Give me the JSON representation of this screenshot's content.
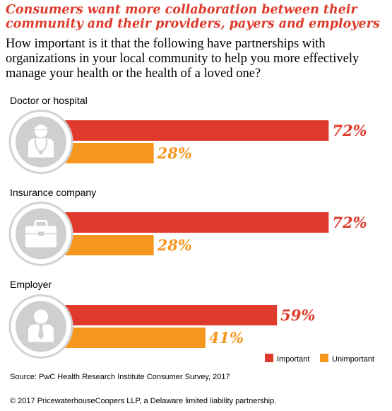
{
  "title": "Consumers want more collaboration between their community and their providers, payers and employers",
  "question": "How important is it that the following have partnerships with organizations in your local community to help you more effectively manage your health or the health of a loved one?",
  "chart_data": {
    "type": "bar",
    "orientation": "horizontal",
    "categories": [
      "Doctor or hospital",
      "Insurance company",
      "Employer"
    ],
    "icons": [
      "doctor-icon",
      "briefcase-icon",
      "person-tie-icon"
    ],
    "series": [
      {
        "name": "Important",
        "values": [
          72,
          72,
          59
        ],
        "labels": [
          "72%",
          "72%",
          "59%"
        ],
        "color": "#e03a2c"
      },
      {
        "name": "Unimportant",
        "values": [
          28,
          28,
          41
        ],
        "labels": [
          "28%",
          "28%",
          "41%"
        ],
        "color": "#f5961e"
      }
    ],
    "unit": "%",
    "xlim": [
      0,
      100
    ],
    "legend": "bottom-right",
    "grid": false
  },
  "source": "Source: PwC Health Research Institute Consumer Survey, 2017",
  "copyright": "© 2017 PricewaterhouseCoopers LLP, a Delaware limited liability partnership."
}
